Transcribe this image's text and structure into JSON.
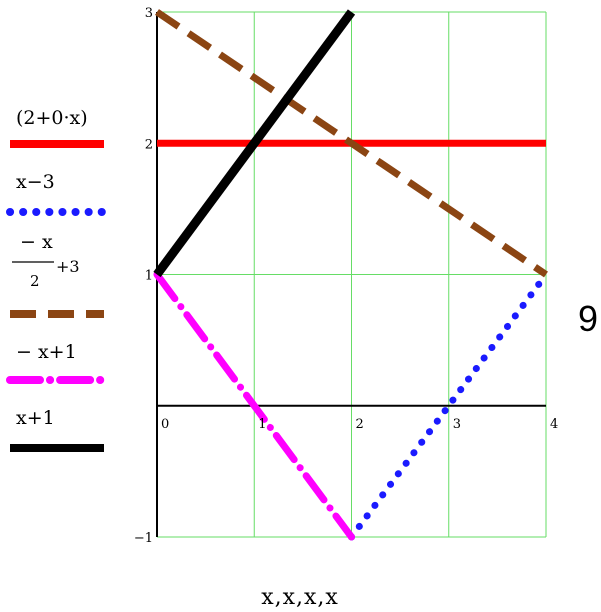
{
  "chart_data": {
    "type": "line",
    "xlabel": "x,x,x,x",
    "xlim": [
      0,
      4
    ],
    "ylim": [
      -1,
      3
    ],
    "x_ticks": [
      "0",
      "1",
      "2",
      "3",
      "4"
    ],
    "y_ticks": [
      "-1",
      "1",
      "2",
      "3"
    ],
    "grid": true,
    "grid_color": "#66dd66",
    "legend_placement": "left",
    "series": [
      {
        "name": "(2+0·x)",
        "color": "#ff0000",
        "style": "solid",
        "points": [
          [
            0,
            2
          ],
          [
            4,
            2
          ]
        ]
      },
      {
        "name": "x−3",
        "color": "#1a1aff",
        "style": "dotted",
        "points": [
          [
            2,
            -1
          ],
          [
            3,
            0
          ],
          [
            4,
            1
          ]
        ]
      },
      {
        "name_top": "− x",
        "name_bottom": "2",
        "name_suffix": "+3",
        "color": "#8b4513",
        "style": "dashed",
        "points": [
          [
            0,
            3
          ],
          [
            2,
            2
          ],
          [
            4,
            1
          ]
        ]
      },
      {
        "name": "− x+1",
        "color": "#ff00ff",
        "style": "dashdot",
        "points": [
          [
            0,
            1
          ],
          [
            1,
            0
          ],
          [
            2,
            -1
          ]
        ]
      },
      {
        "name": "x+1",
        "color": "#000000",
        "style": "solid",
        "points": [
          [
            0,
            1
          ],
          [
            2,
            3
          ]
        ]
      }
    ]
  },
  "side_label": "9"
}
